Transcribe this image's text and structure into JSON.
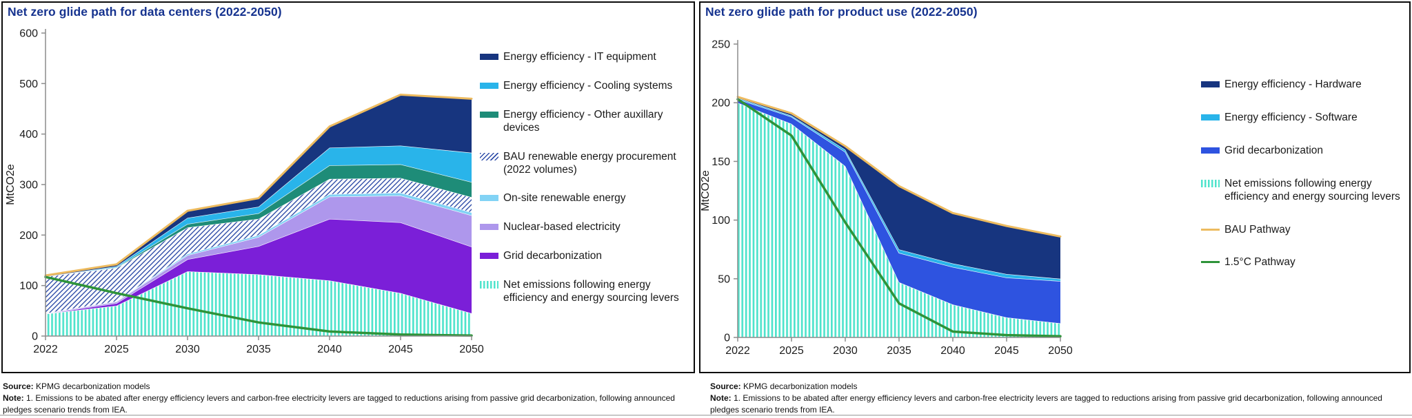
{
  "panels": [
    {
      "title": "Net zero glide path for data centers (2022-2050)",
      "ylabel": "MtCO2e",
      "source_label": "Source:",
      "source_text": " KPMG decarbonization models",
      "note_label": "Note:",
      "note_text": " 1. Emissions to be abated after energy efficiency levers and carbon-free electricity levers are tagged to reductions arising from passive grid decarbonization, following announced pledges scenario trends from IEA.",
      "legend": [
        {
          "label": "Energy efficiency - IT equipment",
          "swatch": "solid",
          "color": "#17357f"
        },
        {
          "label": "Energy efficiency - Cooling systems",
          "swatch": "solid",
          "color": "#29b4ea"
        },
        {
          "label": "Energy efficiency - Other auxillary devices",
          "swatch": "solid",
          "color": "#1e8c78"
        },
        {
          "label": "BAU renewable energy procurement (2022 volumes)",
          "swatch": "hatch",
          "color": "#2f4da8"
        },
        {
          "label": "On-site renewable energy",
          "swatch": "solid",
          "color": "#82d3f5"
        },
        {
          "label": "Nuclear-based electricity",
          "swatch": "solid",
          "color": "#ae97ec"
        },
        {
          "label": "Grid decarbonization",
          "swatch": "solid",
          "color": "#7b1fd8"
        },
        {
          "label": "Net emissions following energy efficiency and energy sourcing levers",
          "swatch": "vstripe",
          "color": "#4fe3cc"
        }
      ]
    },
    {
      "title": "Net zero glide path for product use (2022-2050)",
      "ylabel": "MtCO2e",
      "source_label": "Source:",
      "source_text": " KPMG decarbonization models",
      "note_label": "Note:",
      "note_text": " 1. Emissions to be abated after energy efficiency levers and carbon-free electricity levers are tagged to reductions arising from passive grid decarbonization, following announced pledges scenario trends from IEA.",
      "legend": [
        {
          "label": "Energy efficiency - Hardware",
          "swatch": "solid",
          "color": "#17357f"
        },
        {
          "label": "Energy efficiency - Software",
          "swatch": "solid",
          "color": "#29b4ea"
        },
        {
          "label": "Grid decarbonization",
          "swatch": "solid",
          "color": "#2e53e0"
        },
        {
          "label": "Net emissions following energy efficiency and energy sourcing levers",
          "swatch": "vstripe",
          "color": "#4fe3cc"
        },
        {
          "label": "BAU Pathway",
          "swatch": "line",
          "color": "#edbb5f"
        },
        {
          "label": "1.5°C Pathway",
          "swatch": "line",
          "color": "#2e9339"
        }
      ]
    }
  ],
  "chart_data": [
    {
      "type": "area",
      "stacked": true,
      "title": "Net zero glide path for data centers (2022-2050)",
      "xlabel": "",
      "ylabel": "MtCO2e",
      "ylim": [
        0,
        600
      ],
      "yticks": [
        0,
        100,
        200,
        300,
        400,
        500,
        600
      ],
      "grid": false,
      "legend_position": "right",
      "categories": [
        "2022",
        "2025",
        "2030",
        "2035",
        "2040",
        "2045",
        "2050"
      ],
      "series": [
        {
          "name": "Net emissions following energy efficiency and energy sourcing levers",
          "values": [
            44,
            60,
            128,
            122,
            110,
            85,
            45
          ],
          "color": "#4fe3cc",
          "fill": "vstripe"
        },
        {
          "name": "Grid decarbonization",
          "values": [
            0,
            5,
            24,
            56,
            122,
            140,
            132
          ],
          "color": "#7b1fd8",
          "fill": "solid"
        },
        {
          "name": "Nuclear-based electricity",
          "values": [
            1,
            3,
            8,
            18,
            44,
            53,
            62
          ],
          "color": "#ae97ec",
          "fill": "solid"
        },
        {
          "name": "On-site renewable energy",
          "values": [
            0,
            1,
            3,
            4,
            5,
            6,
            6
          ],
          "color": "#82d3f5",
          "fill": "solid"
        },
        {
          "name": "BAU renewable energy procurement (2022 volumes)",
          "values": [
            73,
            66,
            52,
            32,
            30,
            29,
            30
          ],
          "color": "#2f4da8",
          "fill": "hatch"
        },
        {
          "name": "Energy efficiency - Other auxillary devices",
          "values": [
            0,
            1,
            7,
            11,
            27,
            27,
            30
          ],
          "color": "#1e8c78",
          "fill": "solid"
        },
        {
          "name": "Energy efficiency - Cooling systems",
          "values": [
            0,
            2,
            12,
            13,
            35,
            37,
            58
          ],
          "color": "#29b4ea",
          "fill": "solid"
        },
        {
          "name": "Energy efficiency - IT equipment",
          "values": [
            2,
            4,
            14,
            17,
            42,
            101,
            107
          ],
          "color": "#17357f",
          "fill": "solid"
        }
      ],
      "lines": [
        {
          "name": "BAU Pathway",
          "values": [
            120,
            142,
            248,
            273,
            415,
            478,
            470
          ],
          "color": "#edbb5f",
          "width": 3
        },
        {
          "name": "1.5°C Pathway",
          "values": [
            117,
            85,
            55,
            27,
            9,
            3,
            1
          ],
          "color": "#2e9339",
          "width": 3.5
        }
      ]
    },
    {
      "type": "area",
      "stacked": true,
      "title": "Net zero glide path for product use (2022-2050)",
      "xlabel": "",
      "ylabel": "MtCO2e",
      "ylim": [
        0,
        250
      ],
      "yticks": [
        0,
        50,
        100,
        150,
        200,
        250
      ],
      "grid": false,
      "legend_position": "right",
      "categories": [
        "2022",
        "2025",
        "2030",
        "2035",
        "2040",
        "2045",
        "2050"
      ],
      "series": [
        {
          "name": "Net emissions following energy efficiency and energy sourcing levers",
          "values": [
            200,
            182,
            146,
            47,
            28,
            17,
            12
          ],
          "color": "#4fe3cc",
          "fill": "vstripe"
        },
        {
          "name": "Grid decarbonization",
          "values": [
            3,
            6,
            12,
            25,
            32,
            34,
            36
          ],
          "color": "#2e53e0",
          "fill": "solid"
        },
        {
          "name": "Energy efficiency - Software",
          "values": [
            1,
            1,
            2,
            3,
            3,
            3,
            2
          ],
          "color": "#29b4ea",
          "fill": "solid"
        },
        {
          "name": "Energy efficiency - Hardware",
          "values": [
            1,
            2,
            3,
            54,
            43,
            41,
            36
          ],
          "color": "#17357f",
          "fill": "solid"
        }
      ],
      "lines": [
        {
          "name": "BAU Pathway",
          "values": [
            205,
            191,
            163,
            129,
            106,
            95,
            86
          ],
          "color": "#edbb5f",
          "width": 3
        },
        {
          "name": "1.5°C Pathway",
          "values": [
            203,
            172,
            98,
            29,
            5,
            2,
            1
          ],
          "color": "#2e9339",
          "width": 3.5
        }
      ]
    }
  ]
}
